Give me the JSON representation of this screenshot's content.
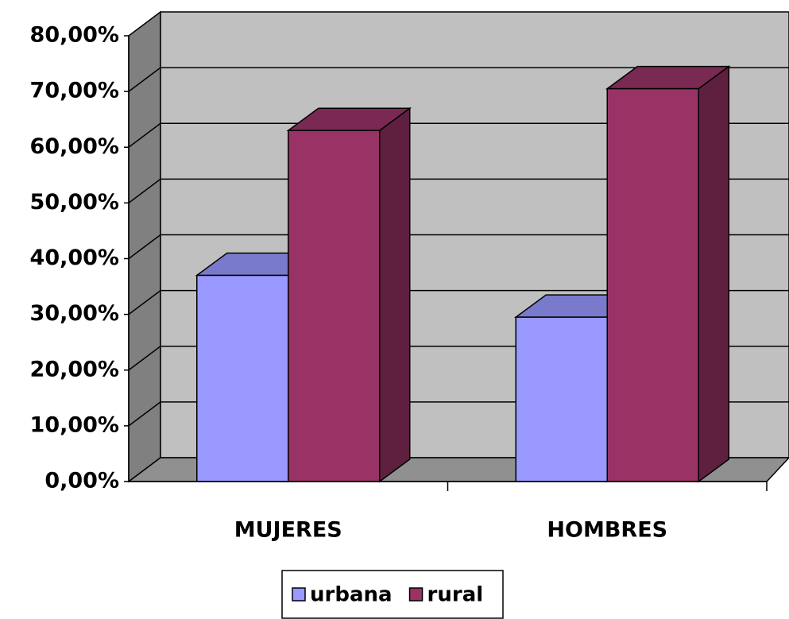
{
  "chart_data": {
    "type": "bar3d",
    "categories": [
      "MUJERES",
      "HOMBRES"
    ],
    "series": [
      {
        "name": "urbana",
        "color": "#9999ff",
        "values": [
          37,
          29.5
        ]
      },
      {
        "name": "rural",
        "color": "#993366",
        "values": [
          63,
          70.5
        ]
      }
    ],
    "ylim": [
      0,
      80
    ],
    "yticks": [
      {
        "value": 0,
        "label": "0,00%"
      },
      {
        "value": 10,
        "label": "10,00%"
      },
      {
        "value": 20,
        "label": "20,00%"
      },
      {
        "value": 30,
        "label": "30,00%"
      },
      {
        "value": 40,
        "label": "40,00%"
      },
      {
        "value": 50,
        "label": "50,00%"
      },
      {
        "value": 60,
        "label": "60,00%"
      },
      {
        "value": 70,
        "label": "70,00%"
      },
      {
        "value": 80,
        "label": "80,00%"
      }
    ],
    "grid": true,
    "legend": "bottom"
  }
}
